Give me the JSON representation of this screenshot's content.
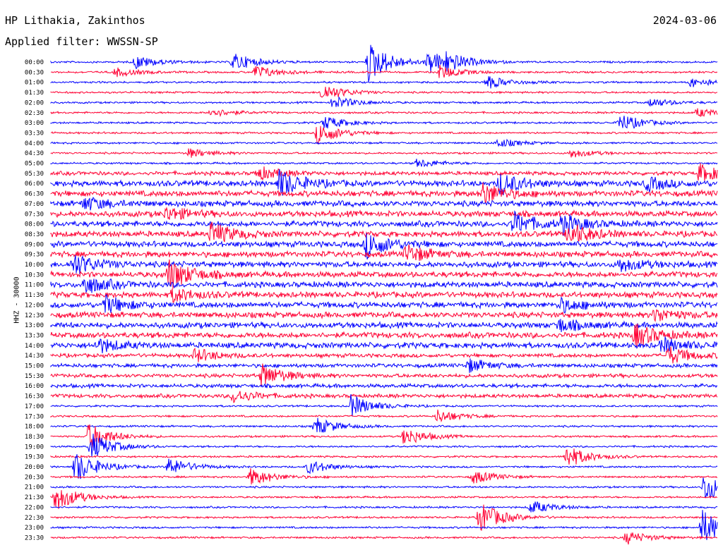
{
  "header": {
    "station": "HP Lithakia, Zakinthos",
    "filter": "Applied filter: WWSSN-SP",
    "date": "2024-03-06"
  },
  "y_axis_label": "HHZ - 30000",
  "colors": {
    "odd_trace": "#0000ff",
    "even_trace": "#ff0033",
    "text": "#000000"
  },
  "chart_data": {
    "type": "line",
    "title": "HP Lithakia, Zakinthos",
    "subtitle": "Applied filter: WWSSN-SP",
    "ylabel": "HHZ - 30000",
    "row_labels": [
      "00:00",
      "00:30",
      "01:00",
      "01:30",
      "02:00",
      "02:30",
      "03:00",
      "03:30",
      "04:00",
      "04:30",
      "05:00",
      "05:30",
      "06:00",
      "06:30",
      "07:00",
      "07:30",
      "08:00",
      "08:30",
      "09:00",
      "09:30",
      "10:00",
      "10:30",
      "11:00",
      "11:30",
      "12:00",
      "12:30",
      "13:00",
      "13:30",
      "14:00",
      "14:30",
      "15:00",
      "15:30",
      "16:00",
      "16:30",
      "17:00",
      "17:30",
      "18:00",
      "18:30",
      "19:00",
      "19:30",
      "20:00",
      "20:30",
      "21:00",
      "21:30",
      "22:00",
      "22:30",
      "23:00",
      "23:30"
    ],
    "row_minutes": 30,
    "noise_levels": [
      1,
      1,
      1,
      1,
      1,
      1,
      1,
      1,
      1,
      1,
      1,
      2,
      3,
      3,
      3,
      3,
      3,
      3,
      3,
      3,
      3,
      3,
      3,
      3,
      3,
      3,
      3,
      3,
      3,
      2,
      2,
      2,
      2,
      2,
      1,
      1,
      1,
      1,
      1,
      1,
      1,
      1,
      1,
      1,
      1,
      1,
      1,
      1
    ],
    "events": [
      {
        "row": 0,
        "minute": 3.8,
        "amplitude": 3
      },
      {
        "row": 0,
        "minute": 8.2,
        "amplitude": 4
      },
      {
        "row": 0,
        "minute": 14.3,
        "amplitude": 9
      },
      {
        "row": 0,
        "minute": 17.0,
        "amplitude": 5
      },
      {
        "row": 0,
        "minute": 17.8,
        "amplitude": 3
      },
      {
        "row": 1,
        "minute": 2.9,
        "amplitude": 2
      },
      {
        "row": 1,
        "minute": 9.2,
        "amplitude": 3
      },
      {
        "row": 1,
        "minute": 17.5,
        "amplitude": 3
      },
      {
        "row": 2,
        "minute": 19.6,
        "amplitude": 3
      },
      {
        "row": 2,
        "minute": 28.8,
        "amplitude": 2
      },
      {
        "row": 3,
        "minute": 12.2,
        "amplitude": 4
      },
      {
        "row": 4,
        "minute": 12.7,
        "amplitude": 3
      },
      {
        "row": 4,
        "minute": 27.0,
        "amplitude": 2
      },
      {
        "row": 5,
        "minute": 7.2,
        "amplitude": 2
      },
      {
        "row": 5,
        "minute": 29.1,
        "amplitude": 2
      },
      {
        "row": 6,
        "minute": 25.6,
        "amplitude": 4
      },
      {
        "row": 6,
        "minute": 12.3,
        "amplitude": 3
      },
      {
        "row": 7,
        "minute": 12.0,
        "amplitude": 5
      },
      {
        "row": 8,
        "minute": 20.1,
        "amplitude": 2
      },
      {
        "row": 9,
        "minute": 6.2,
        "amplitude": 2
      },
      {
        "row": 9,
        "minute": 23.4,
        "amplitude": 2
      },
      {
        "row": 10,
        "minute": 16.5,
        "amplitude": 2
      },
      {
        "row": 11,
        "minute": 9.3,
        "amplitude": 3
      },
      {
        "row": 11,
        "minute": 29.2,
        "amplitude": 4
      },
      {
        "row": 12,
        "minute": 10.3,
        "amplitude": 6
      },
      {
        "row": 12,
        "minute": 20.2,
        "amplitude": 5
      },
      {
        "row": 12,
        "minute": 26.8,
        "amplitude": 3
      },
      {
        "row": 13,
        "minute": 19.4,
        "amplitude": 5
      },
      {
        "row": 14,
        "minute": 1.5,
        "amplitude": 3
      },
      {
        "row": 15,
        "minute": 5.2,
        "amplitude": 3
      },
      {
        "row": 16,
        "minute": 20.8,
        "amplitude": 5
      },
      {
        "row": 16,
        "minute": 23.0,
        "amplitude": 4
      },
      {
        "row": 17,
        "minute": 7.2,
        "amplitude": 5
      },
      {
        "row": 17,
        "minute": 23.3,
        "amplitude": 5
      },
      {
        "row": 18,
        "minute": 14.2,
        "amplitude": 6
      },
      {
        "row": 19,
        "minute": 16.0,
        "amplitude": 4
      },
      {
        "row": 20,
        "minute": 1.0,
        "amplitude": 5
      },
      {
        "row": 20,
        "minute": 25.6,
        "amplitude": 3
      },
      {
        "row": 21,
        "minute": 5.3,
        "amplitude": 7
      },
      {
        "row": 22,
        "minute": 1.5,
        "amplitude": 4
      },
      {
        "row": 23,
        "minute": 5.5,
        "amplitude": 3
      },
      {
        "row": 24,
        "minute": 2.4,
        "amplitude": 4
      },
      {
        "row": 24,
        "minute": 22.9,
        "amplitude": 3
      },
      {
        "row": 25,
        "minute": 27.2,
        "amplitude": 3
      },
      {
        "row": 26,
        "minute": 22.8,
        "amplitude": 3
      },
      {
        "row": 27,
        "minute": 26.3,
        "amplitude": 5
      },
      {
        "row": 28,
        "minute": 2.1,
        "amplitude": 3
      },
      {
        "row": 28,
        "minute": 27.5,
        "amplitude": 3
      },
      {
        "row": 29,
        "minute": 6.5,
        "amplitude": 3
      },
      {
        "row": 29,
        "minute": 27.8,
        "amplitude": 4
      },
      {
        "row": 30,
        "minute": 18.8,
        "amplitude": 3
      },
      {
        "row": 31,
        "minute": 9.5,
        "amplitude": 5
      },
      {
        "row": 33,
        "minute": 8.2,
        "amplitude": 3
      },
      {
        "row": 34,
        "minute": 13.5,
        "amplitude": 5
      },
      {
        "row": 35,
        "minute": 17.4,
        "amplitude": 3
      },
      {
        "row": 36,
        "minute": 11.9,
        "amplitude": 4
      },
      {
        "row": 37,
        "minute": 1.7,
        "amplitude": 6
      },
      {
        "row": 37,
        "minute": 15.9,
        "amplitude": 4
      },
      {
        "row": 38,
        "minute": 1.8,
        "amplitude": 6
      },
      {
        "row": 39,
        "minute": 23.2,
        "amplitude": 5
      },
      {
        "row": 40,
        "minute": 1.1,
        "amplitude": 7
      },
      {
        "row": 40,
        "minute": 5.3,
        "amplitude": 4
      },
      {
        "row": 40,
        "minute": 11.6,
        "amplitude": 3
      },
      {
        "row": 41,
        "minute": 9.0,
        "amplitude": 4
      },
      {
        "row": 41,
        "minute": 19.0,
        "amplitude": 3
      },
      {
        "row": 42,
        "minute": 29.4,
        "amplitude": 7
      },
      {
        "row": 43,
        "minute": 0.2,
        "amplitude": 6
      },
      {
        "row": 44,
        "minute": 21.6,
        "amplitude": 3
      },
      {
        "row": 45,
        "minute": 19.3,
        "amplitude": 7
      },
      {
        "row": 46,
        "minute": 29.3,
        "amplitude": 8
      },
      {
        "row": 47,
        "minute": 25.9,
        "amplitude": 3
      }
    ]
  }
}
